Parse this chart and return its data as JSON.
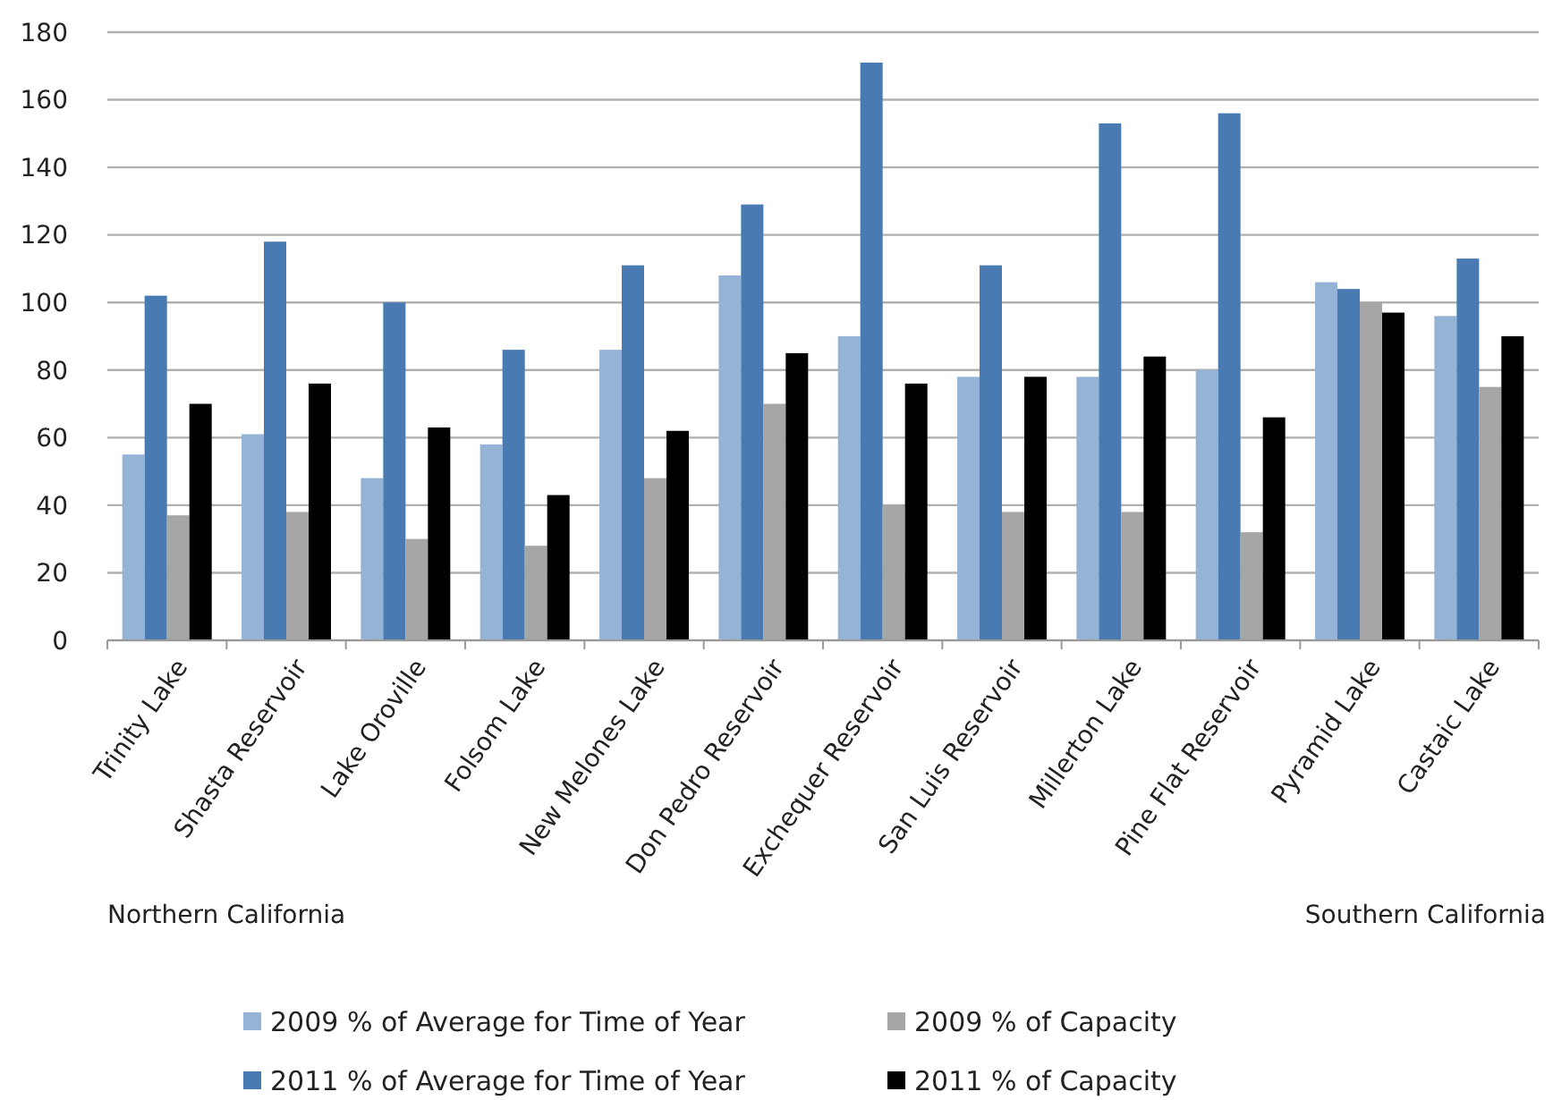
{
  "chart_data": {
    "type": "bar",
    "categories": [
      "Trinity Lake",
      "Shasta Reservoir",
      "Lake Oroville",
      "Folsom Lake",
      "New Melones Lake",
      "Don Pedro Reservoir",
      "Exchequer Reservoir",
      "San Luis Reservoir",
      "Millerton Lake",
      "Pine Flat Reservoir",
      "Pyramid Lake",
      "Castaic Lake"
    ],
    "series": [
      {
        "name": "2009 % of Average for Time of Year",
        "color": "#95b3d7",
        "values": [
          55,
          61,
          48,
          58,
          86,
          108,
          90,
          78,
          78,
          80,
          106,
          96
        ]
      },
      {
        "name": "2011 % of Average for Time of Year",
        "color": "#4a7ab2",
        "values": [
          102,
          118,
          100,
          86,
          111,
          129,
          171,
          111,
          153,
          156,
          104,
          113
        ]
      },
      {
        "name": "2009 % of Capacity",
        "color": "#a6a6a6",
        "values": [
          37,
          38,
          30,
          28,
          48,
          70,
          40,
          38,
          38,
          32,
          100,
          75
        ]
      },
      {
        "name": "2011 % of Capacity",
        "color": "#000000",
        "values": [
          70,
          76,
          63,
          43,
          62,
          85,
          76,
          78,
          84,
          66,
          97,
          90
        ]
      }
    ],
    "ylim": [
      0,
      180
    ],
    "yticks": [
      0,
      20,
      40,
      60,
      80,
      100,
      120,
      140,
      160,
      180
    ],
    "grid": "y",
    "legend": "bottom",
    "annotations": [
      "Northern California",
      "Southern California"
    ]
  }
}
